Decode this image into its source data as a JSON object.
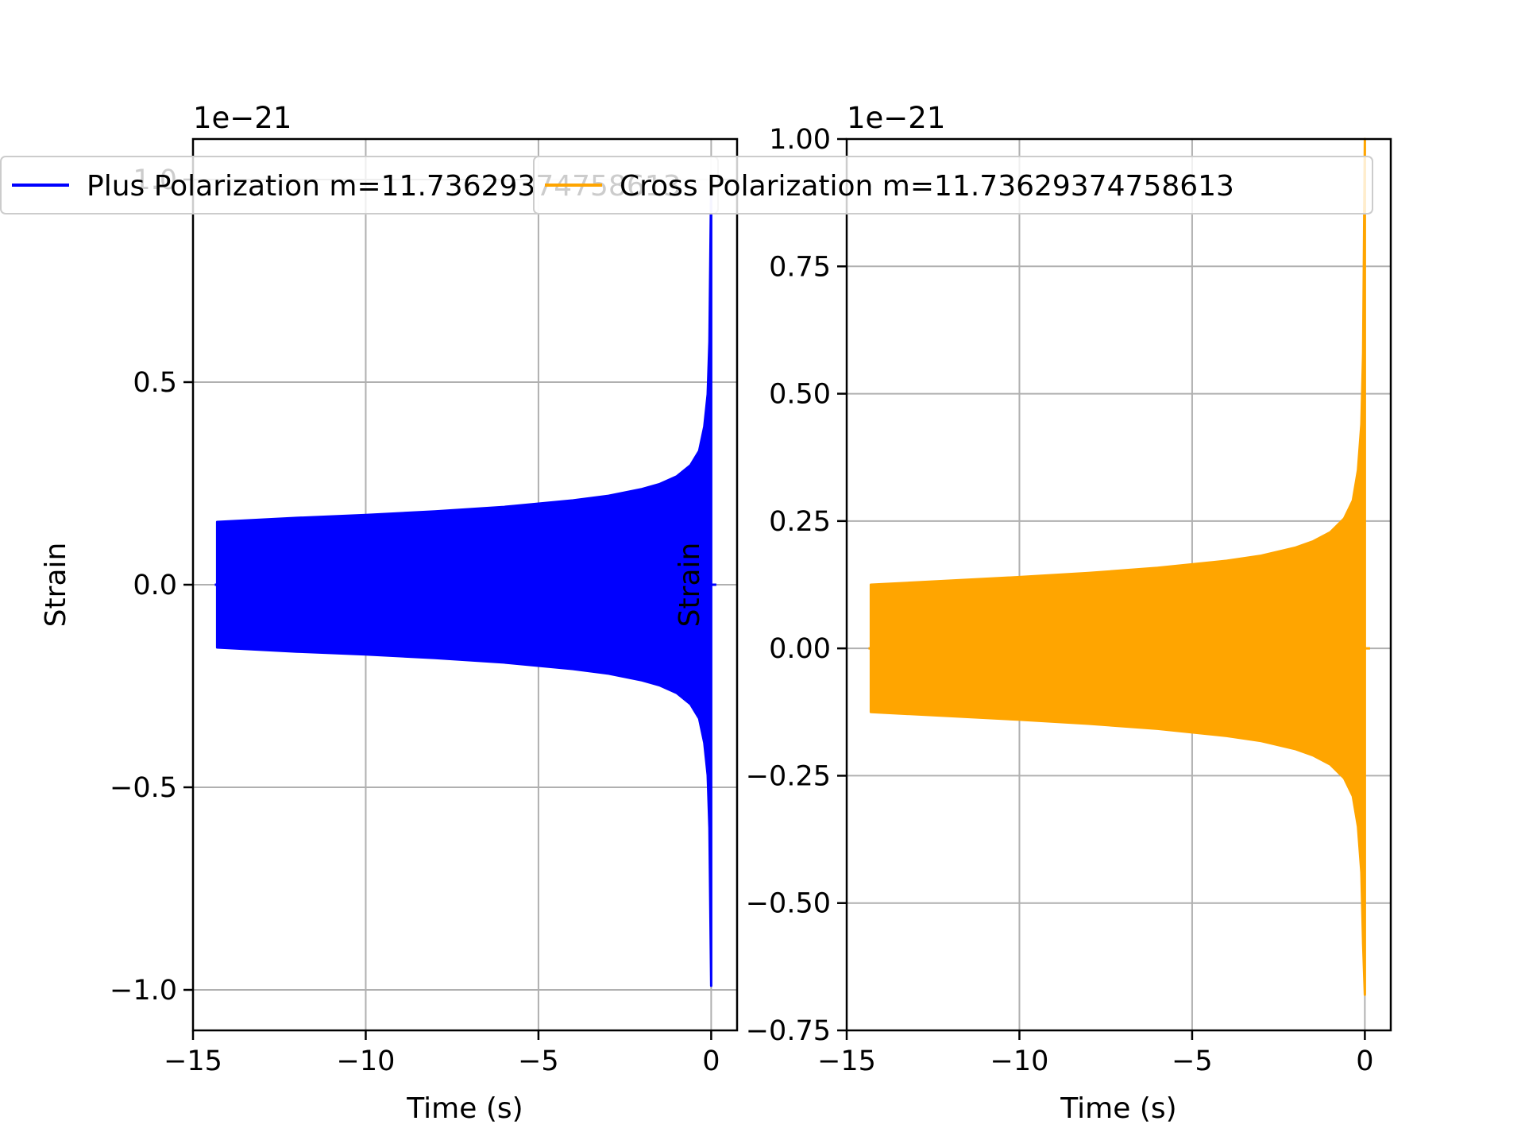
{
  "chart_data": [
    {
      "type": "line",
      "xlabel": "Time (s)",
      "ylabel": "Strain",
      "y_offset_label": "1e−21",
      "xlim": [
        -15,
        0.75
      ],
      "ylim": [
        -1.1,
        1.1
      ],
      "x_ticks": [
        -15,
        -10,
        -5,
        0
      ],
      "x_tick_labels": [
        "−15",
        "−10",
        "−5",
        "0"
      ],
      "y_ticks": [
        -1.0,
        -0.5,
        0.0,
        0.5,
        1.0
      ],
      "y_tick_labels": [
        "−1.0",
        "−0.5",
        "0.0",
        "0.5",
        "1.0"
      ],
      "grid": true,
      "legend_position": "top",
      "series": [
        {
          "name": "Plus Polarization m=11.73629374758613",
          "color": "#0000ff",
          "envelope": {
            "x": [
              -14.3,
              -12,
              -10,
              -8,
              -6,
              -4,
              -3,
              -2,
              -1.5,
              -1,
              -0.6,
              -0.35,
              -0.2,
              -0.1,
              -0.05,
              0
            ],
            "upper": [
              0.155,
              0.165,
              0.172,
              0.181,
              0.192,
              0.208,
              0.219,
              0.236,
              0.248,
              0.267,
              0.295,
              0.33,
              0.39,
              0.47,
              0.6,
              1.0
            ],
            "lower": [
              -0.155,
              -0.165,
              -0.172,
              -0.181,
              -0.192,
              -0.208,
              -0.219,
              -0.236,
              -0.248,
              -0.267,
              -0.295,
              -0.33,
              -0.39,
              -0.47,
              -0.6,
              -0.99
            ]
          }
        }
      ]
    },
    {
      "type": "line",
      "xlabel": "Time (s)",
      "ylabel": "Strain",
      "y_offset_label": "1e−21",
      "xlim": [
        -15,
        0.75
      ],
      "ylim": [
        -0.75,
        1.0
      ],
      "x_ticks": [
        -15,
        -10,
        -5,
        0
      ],
      "x_tick_labels": [
        "−15",
        "−10",
        "−5",
        "0"
      ],
      "y_ticks": [
        -0.75,
        -0.5,
        -0.25,
        0.0,
        0.25,
        0.5,
        0.75,
        1.0
      ],
      "y_tick_labels": [
        "−0.75",
        "−0.50",
        "−0.25",
        "0.00",
        "0.25",
        "0.50",
        "0.75",
        "1.00"
      ],
      "grid": true,
      "legend_position": "top",
      "series": [
        {
          "name": "Cross Polarization m=11.73629374758613",
          "color": "#ffa500",
          "envelope": {
            "x": [
              -14.3,
              -12,
              -10,
              -8,
              -6,
              -4,
              -3,
              -2,
              -1.5,
              -1,
              -0.6,
              -0.35,
              -0.2,
              -0.1,
              -0.05,
              0
            ],
            "upper": [
              0.125,
              0.133,
              0.14,
              0.148,
              0.158,
              0.172,
              0.182,
              0.198,
              0.21,
              0.228,
              0.255,
              0.29,
              0.35,
              0.44,
              0.58,
              1.0
            ],
            "lower": [
              -0.125,
              -0.133,
              -0.14,
              -0.148,
              -0.158,
              -0.172,
              -0.182,
              -0.198,
              -0.21,
              -0.228,
              -0.255,
              -0.29,
              -0.35,
              -0.44,
              -0.58,
              -0.68
            ]
          }
        }
      ]
    }
  ]
}
